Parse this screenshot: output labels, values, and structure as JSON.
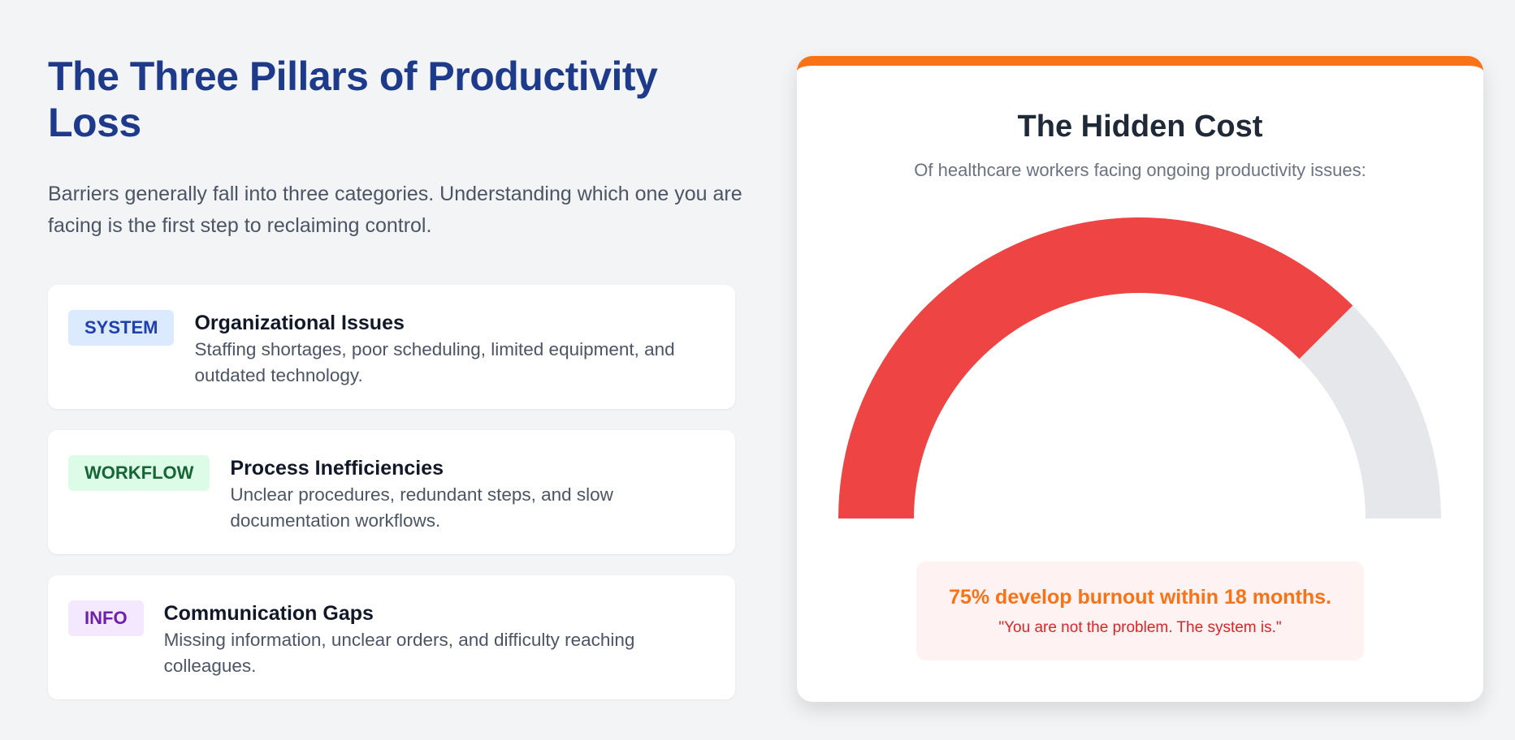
{
  "header": {
    "title": "The Three Pillars of Productivity Loss",
    "intro": "Barriers generally fall into three categories. Understanding which one you are facing is the first step to reclaiming control."
  },
  "cards": [
    {
      "badge": "SYSTEM",
      "title": "Organizational Issues",
      "description": "Staffing shortages, poor scheduling, limited equipment, and outdated technology."
    },
    {
      "badge": "WORKFLOW",
      "title": "Process Inefficiencies",
      "description": "Unclear procedures, redundant steps, and slow documentation workflows."
    },
    {
      "badge": "INFO",
      "title": "Communication Gaps",
      "description": "Missing information, unclear orders, and difficulty reaching colleagues."
    }
  ],
  "chart_data": {
    "type": "gauge",
    "title": "The Hidden Cost",
    "subtitle": "Of healthcare workers facing ongoing productivity issues:",
    "values": [
      75,
      25
    ],
    "colors": [
      "#ef4444",
      "#e5e7eb"
    ],
    "annotation": "75% develop burnout within 18 months.",
    "quote": "\"You are not the problem. The system is.\""
  }
}
